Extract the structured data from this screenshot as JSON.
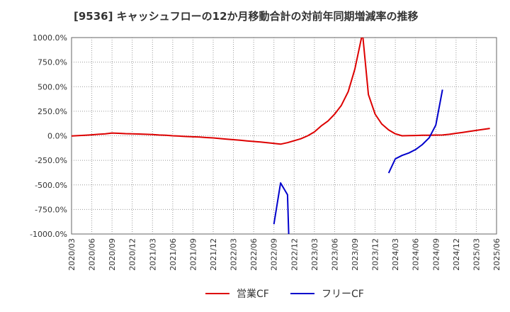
{
  "chart_data": {
    "type": "line",
    "title": "[9536]  キャッシュフローの12か月移動合計の対前年同期増減率の推移",
    "xlabel": "",
    "ylabel": "",
    "ylim": [
      -1000,
      1000
    ],
    "y_ticks": [
      1000,
      750,
      500,
      250,
      0,
      -250,
      -500,
      -750,
      -1000
    ],
    "y_tick_labels": [
      "1000.0%",
      "750.0%",
      "500.0%",
      "250.0%",
      "0.0%",
      "-250.0%",
      "-500.0%",
      "-750.0%",
      "-1000.0%"
    ],
    "categories": [
      "2020/03",
      "2020/06",
      "2020/09",
      "2020/12",
      "2021/03",
      "2021/06",
      "2021/09",
      "2021/12",
      "2022/03",
      "2022/06",
      "2022/09",
      "2022/12",
      "2023/03",
      "2023/06",
      "2023/09",
      "2023/12",
      "2024/03",
      "2024/06",
      "2024/09",
      "2024/12",
      "2025/03",
      "2025/06"
    ],
    "grid": true,
    "legend_position": "bottom",
    "series": [
      {
        "name": "営業CF",
        "color": "#dd0000",
        "points": [
          [
            0,
            -2
          ],
          [
            0.67,
            5
          ],
          [
            1,
            10
          ],
          [
            1.33,
            15
          ],
          [
            1.67,
            20
          ],
          [
            2,
            28
          ],
          [
            2.33,
            25
          ],
          [
            2.67,
            22
          ],
          [
            3,
            20
          ],
          [
            3.33,
            18
          ],
          [
            3.67,
            15
          ],
          [
            4,
            13
          ],
          [
            4.33,
            8
          ],
          [
            4.67,
            5
          ],
          [
            5,
            0
          ],
          [
            5.33,
            -3
          ],
          [
            5.67,
            -7
          ],
          [
            6,
            -10
          ],
          [
            6.33,
            -13
          ],
          [
            6.67,
            -18
          ],
          [
            7,
            -22
          ],
          [
            7.33,
            -28
          ],
          [
            7.67,
            -35
          ],
          [
            8,
            -40
          ],
          [
            8.33,
            -45
          ],
          [
            8.67,
            -52
          ],
          [
            9,
            -58
          ],
          [
            9.33,
            -63
          ],
          [
            9.67,
            -70
          ],
          [
            10,
            -77
          ],
          [
            10.33,
            -85
          ],
          [
            10.67,
            -70
          ],
          [
            11,
            -50
          ],
          [
            11.33,
            -30
          ],
          [
            11.67,
            0
          ],
          [
            12,
            40
          ],
          [
            12.33,
            100
          ],
          [
            12.67,
            150
          ],
          [
            13,
            220
          ],
          [
            13.33,
            310
          ],
          [
            13.67,
            450
          ],
          [
            14,
            680
          ],
          [
            14.33,
            1000
          ],
          [
            14.4,
            1000
          ],
          [
            14.67,
            420
          ],
          [
            15,
            220
          ],
          [
            15.33,
            120
          ],
          [
            15.67,
            60
          ],
          [
            16,
            20
          ],
          [
            16.33,
            0
          ],
          [
            16.67,
            2
          ],
          [
            17,
            3
          ],
          [
            17.33,
            5
          ],
          [
            17.67,
            5
          ],
          [
            18,
            7
          ],
          [
            18.33,
            8
          ],
          [
            18.67,
            15
          ],
          [
            19,
            25
          ],
          [
            19.33,
            35
          ],
          [
            19.67,
            45
          ],
          [
            20,
            55
          ],
          [
            20.33,
            65
          ],
          [
            20.67,
            75
          ]
        ]
      },
      {
        "name": "フリーCF",
        "color": "#0000cc",
        "segments": [
          [
            [
              10,
              -900
            ],
            [
              10.33,
              -480
            ],
            [
              10.67,
              -600
            ],
            [
              10.73,
              -1000
            ]
          ],
          [
            [
              15.67,
              -380
            ],
            [
              16,
              -235
            ],
            [
              16.33,
              -200
            ],
            [
              16.67,
              -175
            ],
            [
              17,
              -140
            ],
            [
              17.33,
              -90
            ],
            [
              17.67,
              -20
            ],
            [
              18,
              110
            ],
            [
              18.33,
              470
            ]
          ]
        ]
      }
    ]
  }
}
